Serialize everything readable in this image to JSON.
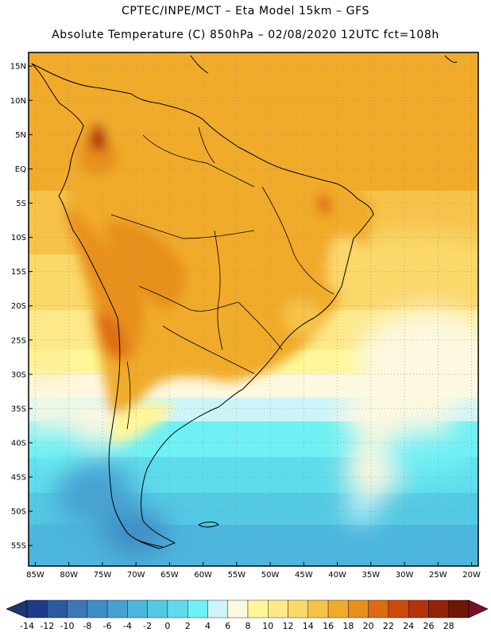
{
  "header": {
    "line1": "CPTEC/INPE/MCT –  Eta Model 15km – GFS",
    "line2": "Absolute Temperature (C) 850hPa – 02/08/2020 12UTC fct=108h"
  },
  "map": {
    "lon_range": [
      -86,
      -19
    ],
    "lat_range": [
      -58,
      17
    ],
    "lat_labels": [
      "15N",
      "10N",
      "5N",
      "EQ",
      "5S",
      "10S",
      "15S",
      "20S",
      "25S",
      "30S",
      "35S",
      "40S",
      "45S",
      "50S",
      "55S"
    ],
    "lat_values": [
      15,
      10,
      5,
      0,
      -5,
      -10,
      -15,
      -20,
      -25,
      -30,
      -35,
      -40,
      -45,
      -50,
      -55
    ],
    "lon_labels": [
      "85W",
      "80W",
      "75W",
      "70W",
      "65W",
      "60W",
      "55W",
      "50W",
      "45W",
      "40W",
      "35W",
      "30W",
      "25W",
      "20W"
    ],
    "lon_values": [
      -85,
      -80,
      -75,
      -70,
      -65,
      -60,
      -55,
      -50,
      -45,
      -40,
      -35,
      -30,
      -25,
      -20
    ]
  },
  "colorbar": {
    "labels": [
      "-14",
      "-12",
      "-10",
      "-8",
      "-6",
      "-4",
      "-2",
      "0",
      "2",
      "4",
      "6",
      "8",
      "10",
      "12",
      "14",
      "16",
      "18",
      "20",
      "22",
      "24",
      "26",
      "28"
    ],
    "colors": [
      "#1f3a8a",
      "#2c5aa0",
      "#3a78b8",
      "#3f8dc6",
      "#46a2d3",
      "#4cb6dd",
      "#54c9e4",
      "#5edceb",
      "#6ff0f4",
      "#cdf5f9",
      "#fdf8e0",
      "#fef79a",
      "#fde98a",
      "#fbd86a",
      "#f6c24a",
      "#f1ab2a",
      "#e8901e",
      "#df6a12",
      "#cc4a0c",
      "#b5330a",
      "#93220a",
      "#6f1606"
    ],
    "low_color": "#1d3570",
    "high_color": "#7a0f2a"
  }
}
